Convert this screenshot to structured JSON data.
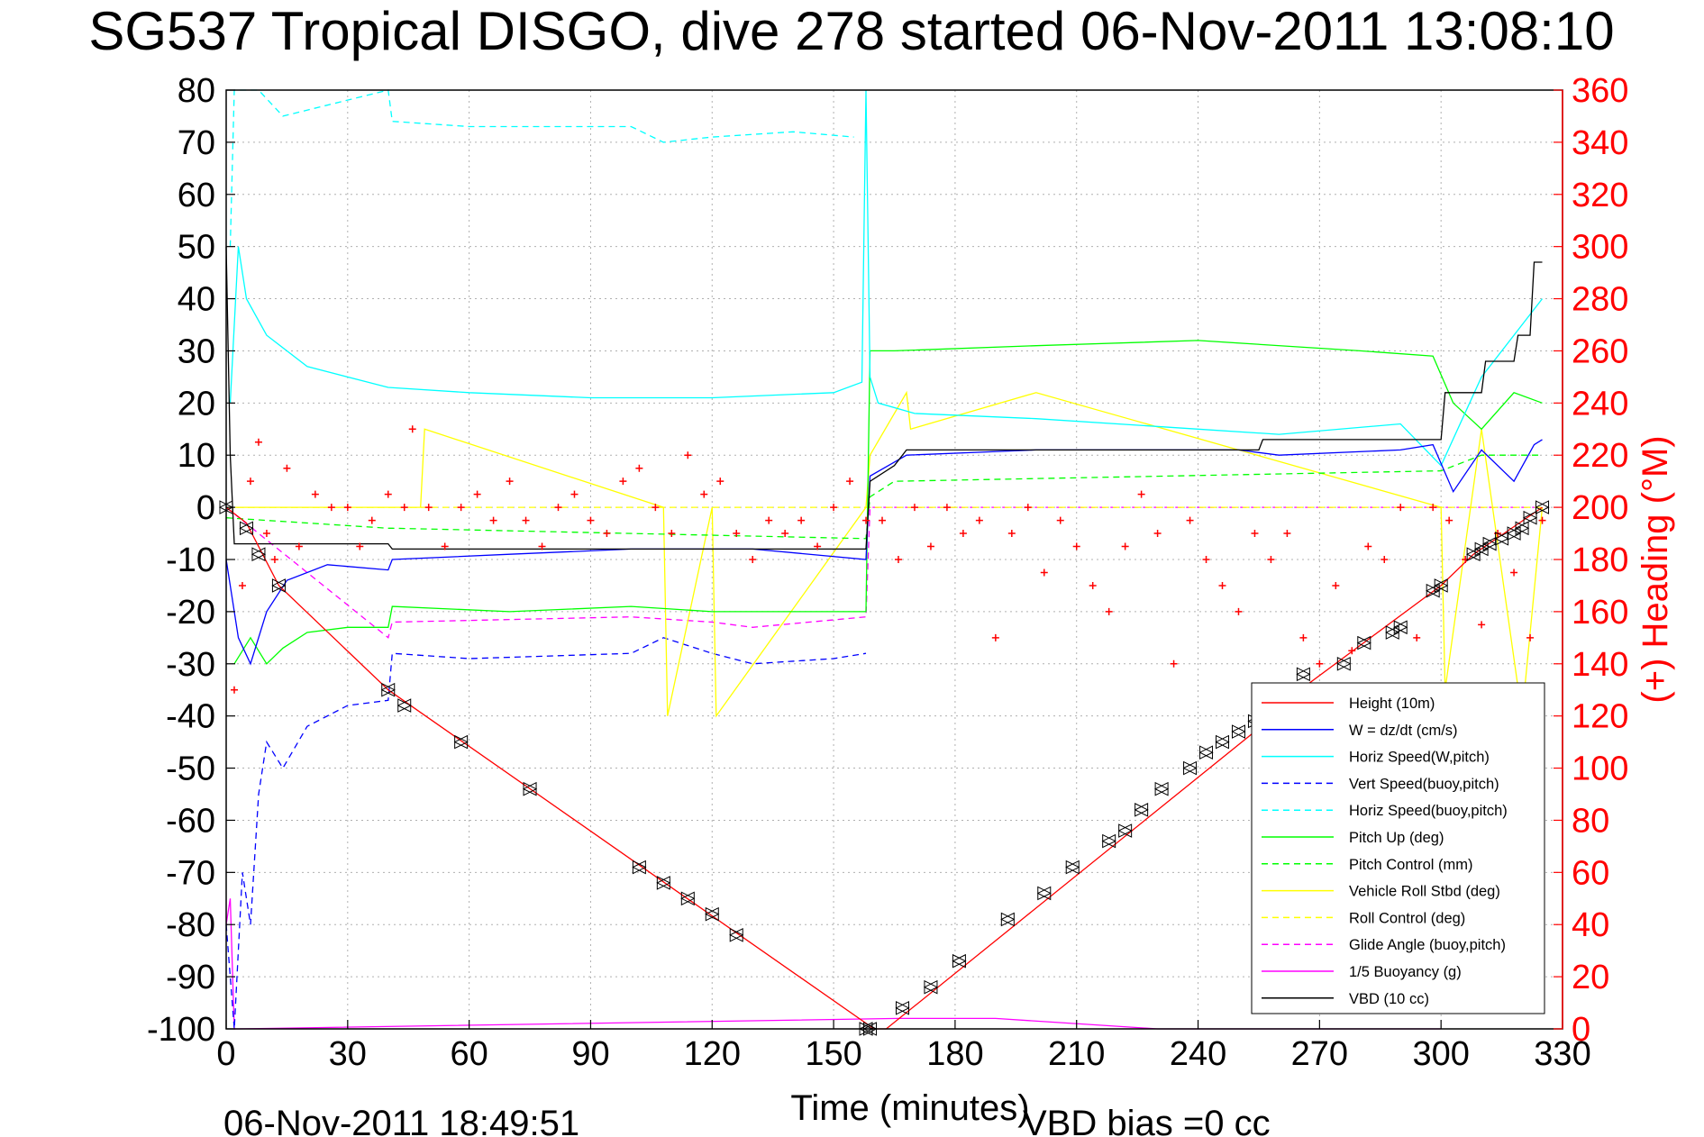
{
  "footer": {
    "end_time": "06-Nov-2011 18:49:51",
    "vbd_bias": "VBD bias =0 cc"
  },
  "chart_data": {
    "type": "line",
    "title": "SG537 Tropical DISGO, dive 278 started 06-Nov-2011 13:08:10",
    "xlabel": "Time (minutes)",
    "ylabel": "",
    "y2label": "(+) Heading (°M)",
    "xlim": [
      0,
      330
    ],
    "ylim": [
      -100,
      80
    ],
    "y2lim": [
      0,
      360
    ],
    "xticks": [
      0,
      30,
      60,
      90,
      120,
      150,
      180,
      210,
      240,
      270,
      300,
      330
    ],
    "yticks": [
      80,
      70,
      60,
      50,
      40,
      30,
      20,
      10,
      0,
      -10,
      -20,
      -30,
      -40,
      -50,
      -60,
      -70,
      -80,
      -90,
      -100
    ],
    "y2ticks": [
      360,
      340,
      320,
      300,
      280,
      260,
      240,
      220,
      200,
      180,
      160,
      140,
      120,
      100,
      80,
      60,
      40,
      20,
      0
    ],
    "grid": true,
    "legend_position": "bottom-right",
    "series": [
      {
        "name": "Height (10m)",
        "color": "#ff0000",
        "style": "solid",
        "x": [
          0,
          5,
          13,
          40,
          160,
          163,
          254,
          260,
          300,
          308,
          325
        ],
        "y": [
          0,
          -3,
          -15,
          -35,
          -100,
          -100,
          -43,
          -38,
          -15,
          -9,
          0
        ]
      },
      {
        "name": "W = dz/dt (cm/s)",
        "color": "#0000ff",
        "style": "solid",
        "x": [
          0,
          3,
          6,
          10,
          15,
          25,
          40,
          41,
          70,
          100,
          130,
          158,
          159,
          168,
          200,
          250,
          260,
          290,
          298,
          303,
          310,
          318,
          323,
          325
        ],
        "y": [
          -10,
          -25,
          -30,
          -20,
          -14,
          -11,
          -12,
          -10,
          -9,
          -8,
          -8,
          -10,
          6,
          10,
          11,
          11,
          10,
          11,
          12,
          3,
          11,
          5,
          12,
          13
        ]
      },
      {
        "name": "Horiz Speed(W,pitch)",
        "color": "#00ffff",
        "style": "solid",
        "x": [
          1,
          3,
          5,
          10,
          20,
          40,
          60,
          90,
          120,
          150,
          157,
          158,
          159,
          161,
          170,
          200,
          240,
          260,
          290,
          300,
          310,
          320,
          325
        ],
        "y": [
          20,
          50,
          40,
          33,
          27,
          23,
          22,
          21,
          21,
          22,
          24,
          80,
          25,
          20,
          18,
          17,
          15,
          14,
          16,
          8,
          25,
          35,
          40
        ]
      },
      {
        "name": "Vert Speed(buoy,pitch)",
        "color": "#0000ff",
        "style": "dashed",
        "x": [
          0,
          2,
          4,
          6,
          8,
          10,
          14,
          20,
          30,
          40,
          41,
          60,
          100,
          108,
          120,
          130,
          150,
          158
        ],
        "y": [
          -80,
          -100,
          -70,
          -80,
          -55,
          -45,
          -50,
          -42,
          -38,
          -37,
          -28,
          -29,
          -28,
          -25,
          -28,
          -30,
          -29,
          -28
        ]
      },
      {
        "name": "Horiz Speed(buoy,pitch)",
        "color": "#00ffff",
        "style": "dashed",
        "x": [
          1,
          2,
          4,
          8,
          14,
          40,
          41,
          60,
          100,
          108,
          120,
          140,
          155
        ],
        "y": [
          50,
          80,
          80,
          80,
          75,
          80,
          74,
          73,
          73,
          70,
          71,
          72,
          71
        ]
      },
      {
        "name": "Pitch Up (deg)",
        "color": "#00ff00",
        "style": "solid",
        "x": [
          2,
          6,
          10,
          14,
          20,
          30,
          40,
          41,
          70,
          100,
          120,
          140,
          158,
          159,
          165,
          200,
          240,
          280,
          298,
          303,
          310,
          318,
          325
        ],
        "y": [
          -30,
          -25,
          -30,
          -27,
          -24,
          -23,
          -23,
          -19,
          -20,
          -19,
          -20,
          -20,
          -20,
          30,
          30,
          31,
          32,
          30,
          29,
          20,
          15,
          22,
          20
        ]
      },
      {
        "name": "Pitch Control (mm)",
        "color": "#00ff00",
        "style": "dashed",
        "x": [
          0,
          40,
          41,
          158,
          159,
          165,
          300,
          310,
          325
        ],
        "y": [
          -2,
          -4,
          -4,
          -6,
          2,
          5,
          7,
          10,
          10
        ]
      },
      {
        "name": "Vehicle Roll Stbd (deg)",
        "color": "#ffff00",
        "style": "solid",
        "x": [
          0,
          40,
          41,
          48,
          49,
          108,
          109,
          120,
          121,
          158,
          159,
          168,
          169,
          200,
          300,
          301,
          310,
          320,
          325
        ],
        "y": [
          0,
          0,
          0,
          0,
          15,
          0,
          -40,
          0,
          -40,
          0,
          10,
          22,
          15,
          22,
          0,
          -35,
          15,
          -40,
          0
        ]
      },
      {
        "name": "Roll Control (deg)",
        "color": "#ffff00",
        "style": "dashed",
        "x": [
          0,
          158,
          159,
          325
        ],
        "y": [
          0,
          0,
          0,
          0
        ]
      },
      {
        "name": "Glide Angle (buoy,pitch)",
        "color": "#ff00ff",
        "style": "dashed",
        "x": [
          0,
          40,
          41,
          100,
          120,
          130,
          158,
          159,
          325
        ],
        "y": [
          0,
          -25,
          -22,
          -21,
          -22,
          -23,
          -21,
          0,
          0
        ]
      },
      {
        "name": "1/5 Buoyancy (g)",
        "color": "#ff00ff",
        "style": "solid",
        "x": [
          0,
          1,
          2,
          3,
          166,
          190,
          230,
          300
        ],
        "y": [
          -80,
          -75,
          -100,
          -100,
          -98,
          -98,
          -100,
          -100
        ]
      },
      {
        "name": "VBD (10 cc)",
        "color": "#000000",
        "style": "solid",
        "x": [
          0,
          1,
          2,
          3,
          40,
          41,
          158,
          159,
          165,
          168,
          255,
          256,
          300,
          301,
          310,
          311,
          318,
          319,
          322,
          323,
          325
        ],
        "y": [
          50,
          10,
          -7,
          -7,
          -7,
          -8,
          -8,
          5,
          8,
          11,
          11,
          13,
          13,
          22,
          22,
          28,
          28,
          33,
          33,
          47,
          47
        ]
      }
    ],
    "heading_points": {
      "name": "(+) Heading (°M)",
      "color": "#ff0000",
      "marker": "+",
      "axis": "right",
      "x": [
        2,
        4,
        6,
        8,
        10,
        12,
        15,
        18,
        22,
        26,
        30,
        33,
        36,
        40,
        44,
        46,
        50,
        54,
        58,
        62,
        66,
        70,
        74,
        78,
        82,
        86,
        90,
        94,
        98,
        102,
        106,
        110,
        114,
        118,
        122,
        126,
        130,
        134,
        138,
        142,
        146,
        150,
        154,
        158,
        162,
        166,
        170,
        174,
        178,
        182,
        186,
        190,
        194,
        198,
        202,
        206,
        210,
        214,
        218,
        222,
        226,
        230,
        234,
        238,
        242,
        246,
        250,
        254,
        258,
        262,
        266,
        270,
        274,
        278,
        282,
        286,
        290,
        294,
        298,
        302,
        306,
        310,
        314,
        318,
        322,
        325
      ],
      "y": [
        130,
        170,
        210,
        225,
        190,
        180,
        215,
        185,
        205,
        200,
        200,
        185,
        195,
        205,
        200,
        230,
        200,
        185,
        200,
        205,
        195,
        210,
        195,
        185,
        200,
        205,
        195,
        190,
        210,
        215,
        200,
        190,
        220,
        205,
        210,
        190,
        180,
        195,
        190,
        195,
        185,
        200,
        210,
        195,
        195,
        180,
        200,
        185,
        200,
        190,
        195,
        150,
        190,
        200,
        175,
        195,
        185,
        170,
        160,
        185,
        205,
        190,
        140,
        195,
        180,
        170,
        160,
        190,
        180,
        190,
        150,
        140,
        170,
        145,
        185,
        180,
        200,
        150,
        200,
        195,
        180,
        155,
        190,
        175,
        150,
        195
      ]
    },
    "depth_markers": {
      "x": [
        0,
        5,
        8,
        13,
        40,
        44,
        58,
        75,
        102,
        108,
        114,
        120,
        126,
        158,
        159,
        167,
        174,
        181,
        193,
        202,
        209,
        218,
        222,
        226,
        231,
        238,
        242,
        246,
        250,
        254,
        266,
        276,
        281,
        288,
        290,
        298,
        300,
        308,
        310,
        312,
        315,
        318,
        320,
        322,
        325
      ],
      "y": [
        0,
        -4,
        -9,
        -15,
        -35,
        -38,
        -45,
        -54,
        -69,
        -72,
        -75,
        -78,
        -82,
        -100,
        -100,
        -96,
        -92,
        -87,
        -79,
        -74,
        -69,
        -64,
        -62,
        -58,
        -54,
        -50,
        -47,
        -45,
        -43,
        -41,
        -32,
        -30,
        -26,
        -24,
        -23,
        -16,
        -15,
        -9,
        -8,
        -7,
        -6,
        -5,
        -4,
        -2,
        0
      ]
    }
  }
}
